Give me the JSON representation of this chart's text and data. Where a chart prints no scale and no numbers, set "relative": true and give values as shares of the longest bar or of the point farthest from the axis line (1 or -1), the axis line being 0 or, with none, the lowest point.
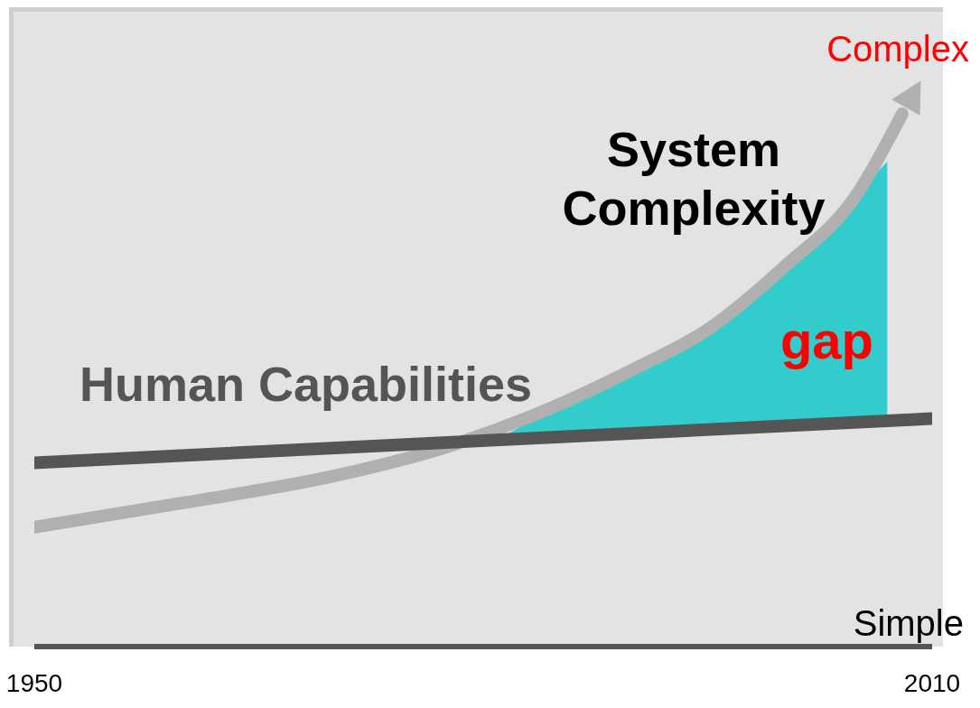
{
  "chart_data": {
    "type": "line",
    "relative": true,
    "xlim": [
      1950,
      2010
    ],
    "xticks": [
      1950,
      2010
    ],
    "series": [
      {
        "name": "System Complexity",
        "color": "#b0b0b0",
        "x": [
          1950,
          1960,
          1970,
          1977,
          1983,
          1990,
          1995,
          2000,
          2005,
          2008
        ],
        "values": [
          0.224,
          0.27,
          0.32,
          0.37,
          0.43,
          0.52,
          0.595,
          0.71,
          0.85,
          1.0
        ]
      },
      {
        "name": "Human Capabilities",
        "color": "#555555",
        "x": [
          1950,
          2010
        ],
        "values": [
          0.345,
          0.428
        ]
      },
      {
        "type": "area",
        "color": "#33cccc",
        "x": [
          1981,
          1985,
          1990,
          1995,
          2000,
          2005,
          2007
        ],
        "values": [
          0.39,
          0.45,
          0.52,
          0.595,
          0.71,
          0.85,
          0.91
        ]
      }
    ],
    "annotations": [
      "Complex",
      "Simple",
      "gap"
    ]
  }
}
